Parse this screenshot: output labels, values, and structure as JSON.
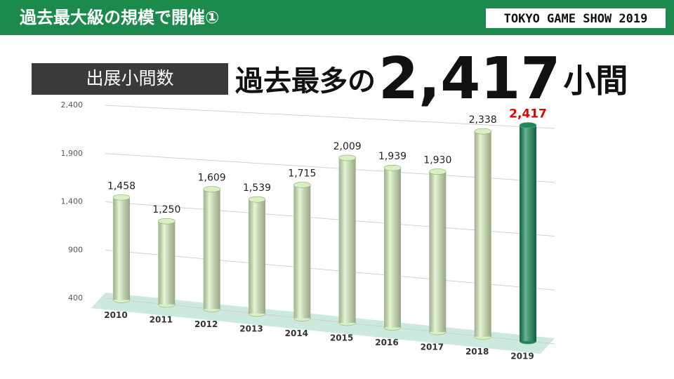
{
  "header": {
    "title": "過去最大級の規模で開催①",
    "logo": "TOKYO GAME SHOW 2019"
  },
  "label": "出展小間数",
  "headline": {
    "prefix": "過去最多の",
    "number": "2,417",
    "suffix": "小間"
  },
  "chart_data": {
    "type": "bar",
    "categories": [
      "2010",
      "2011",
      "2012",
      "2013",
      "2014",
      "2015",
      "2016",
      "2017",
      "2018",
      "2019"
    ],
    "values": [
      1458,
      1250,
      1609,
      1539,
      1715,
      2009,
      1939,
      1930,
      2338,
      2417
    ],
    "value_labels": [
      "1,458",
      "1,250",
      "1,609",
      "1,539",
      "1,715",
      "2,009",
      "1,939",
      "1,930",
      "2,338",
      "2,417"
    ],
    "colors": [
      "#d9f0c0",
      "#d9f0c0",
      "#d9f0c0",
      "#d9f0c0",
      "#d9f0c0",
      "#d9f0c0",
      "#d9f0c0",
      "#d9f0c0",
      "#d9f0c0",
      "#1a8a5a"
    ],
    "label_colors": [
      "#222222",
      "#222222",
      "#222222",
      "#222222",
      "#222222",
      "#222222",
      "#222222",
      "#222222",
      "#222222",
      "#e00000"
    ],
    "ylim": [
      400,
      2400
    ],
    "yticks": [
      400,
      900,
      {
        "value": 1400,
        "label": "1,400"
      },
      {
        "value": 1900,
        "label": "1,900"
      },
      {
        "value": 2400,
        "label": "2,400"
      }
    ],
    "grid": true
  }
}
